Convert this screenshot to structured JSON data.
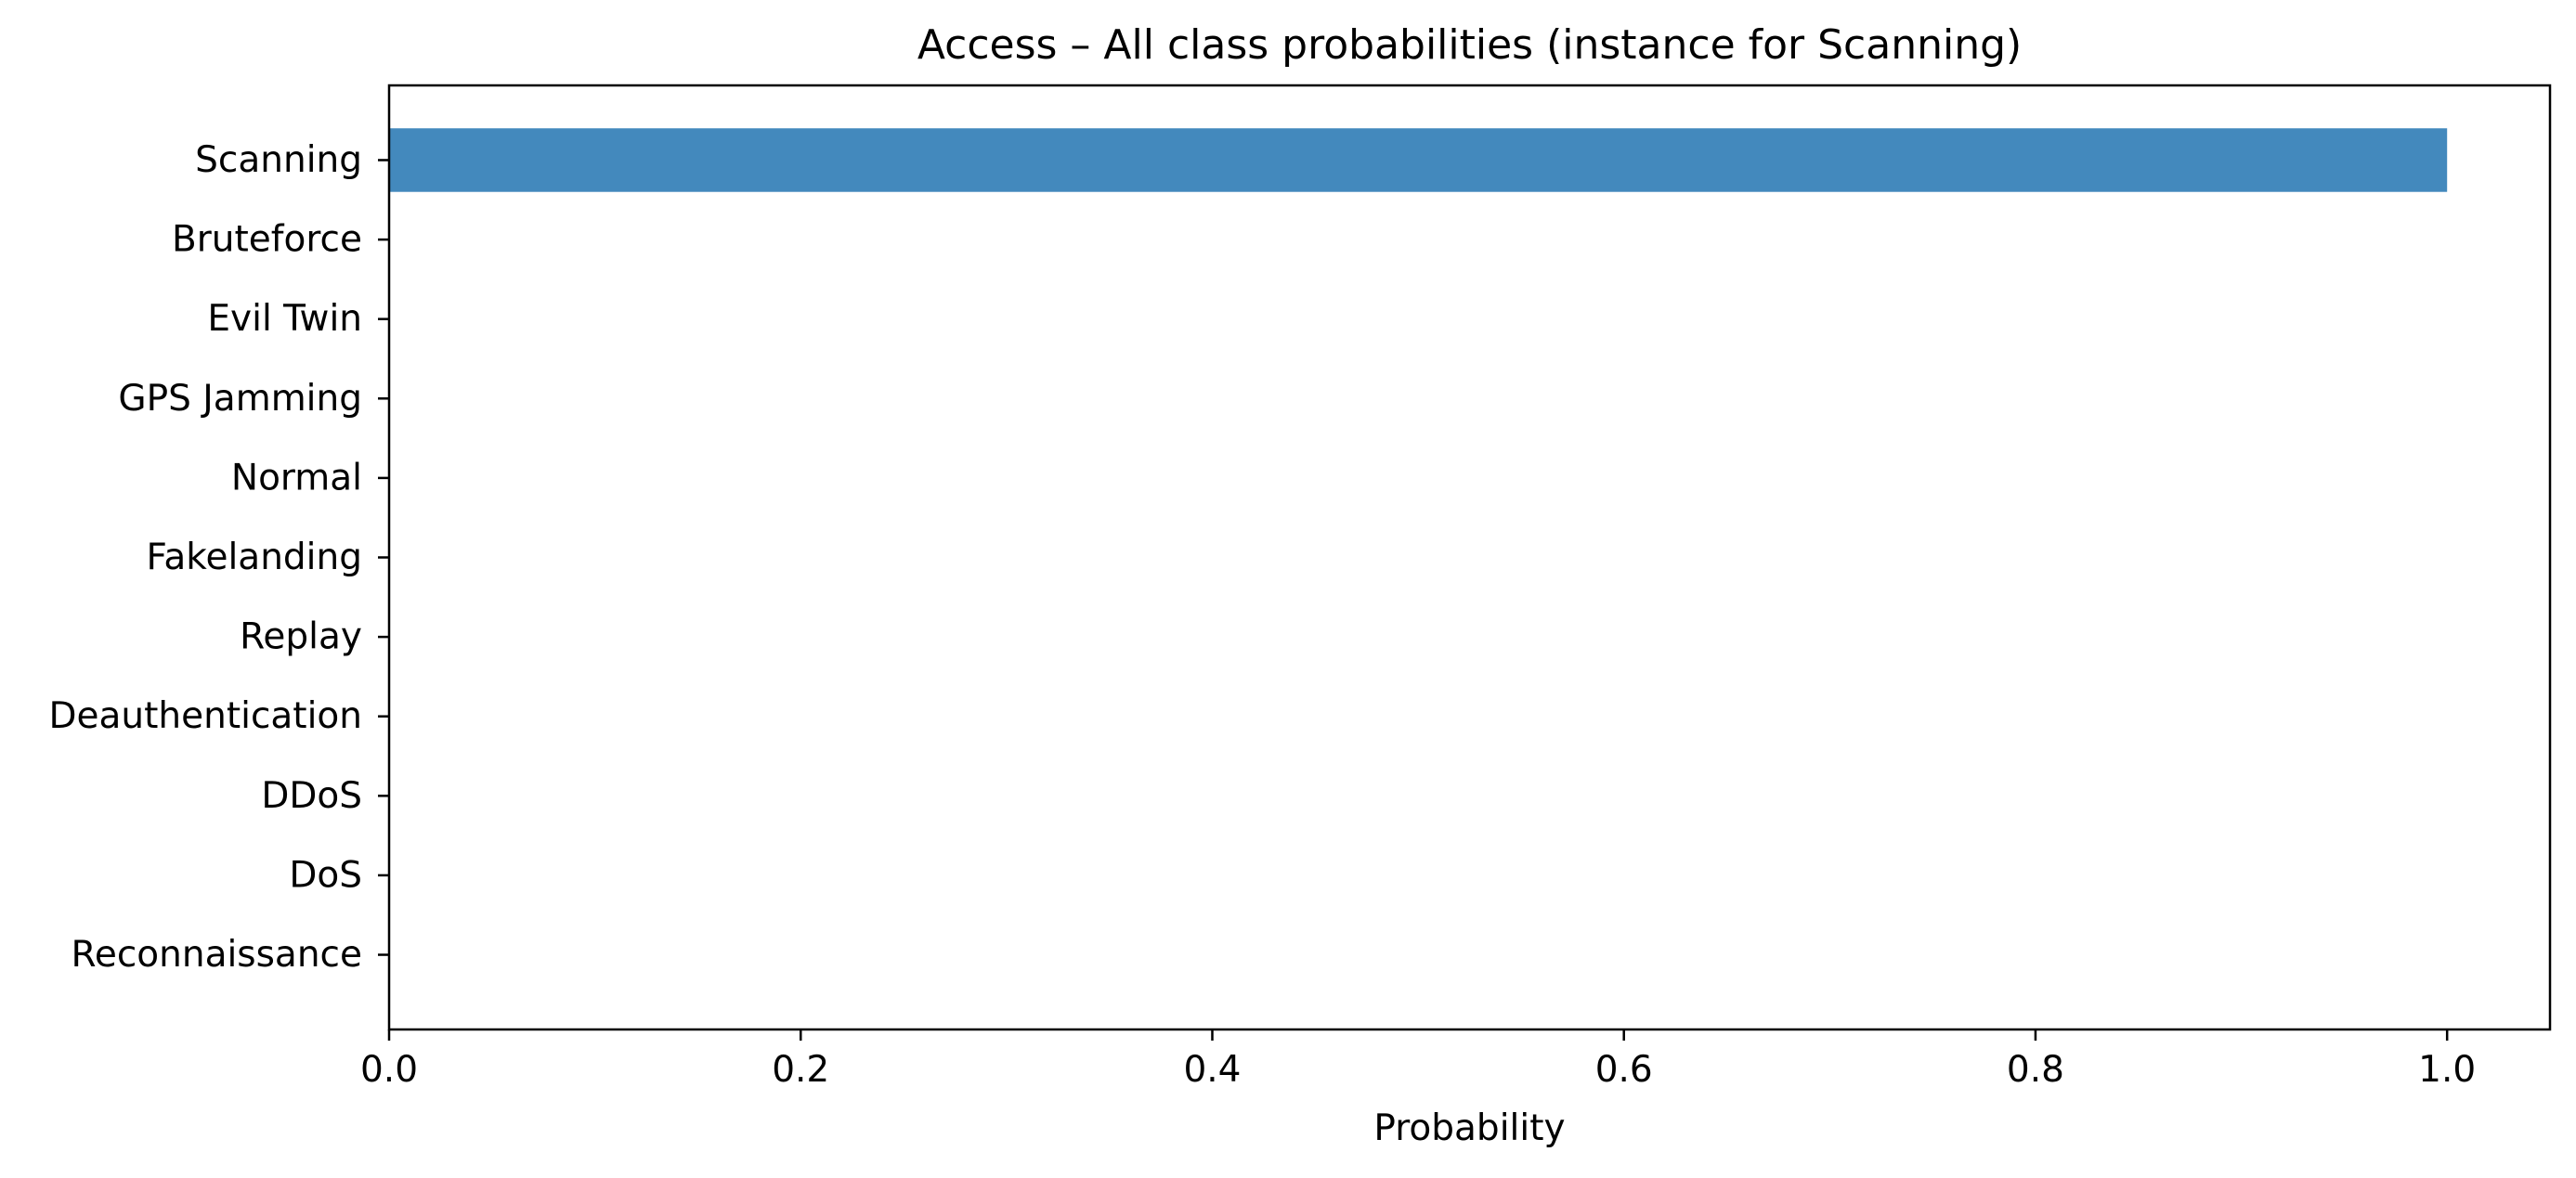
{
  "chart_data": {
    "type": "bar",
    "orientation": "horizontal",
    "title": "Access – All class probabilities (instance for Scanning)",
    "xlabel": "Probability",
    "ylabel": "",
    "categories": [
      "Scanning",
      "Bruteforce",
      "Evil Twin",
      "GPS Jamming",
      "Normal",
      "Fakelanding",
      "Replay",
      "Deauthentication",
      "DDoS",
      "DoS",
      "Reconnaissance"
    ],
    "values": [
      1.0,
      0,
      0,
      0,
      0,
      0,
      0,
      0,
      0,
      0,
      0
    ],
    "xlim": [
      0,
      1.05
    ],
    "xticks": [
      "0.0",
      "0.2",
      "0.4",
      "0.6",
      "0.8",
      "1.0"
    ],
    "grid": false,
    "bar_color": "#4389bd"
  }
}
